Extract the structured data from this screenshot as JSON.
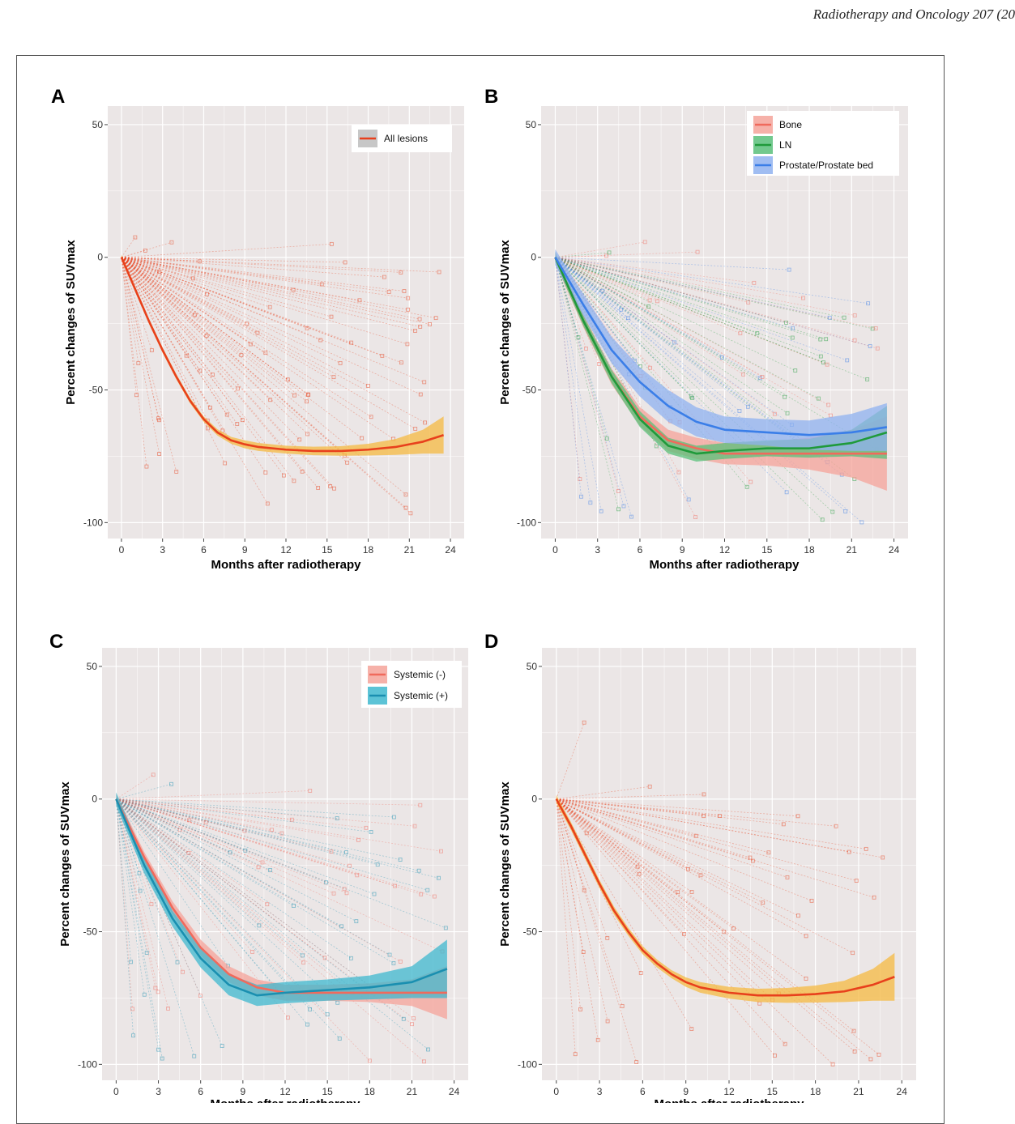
{
  "header": {
    "journal": "Radiotherapy and Oncology 207 (20"
  },
  "chart_data": [
    {
      "panel": "A",
      "type": "line",
      "xlabel": "Months after radiotherapy",
      "ylabel": "Percent changes of SUVmax",
      "xticks": [
        0,
        3,
        6,
        9,
        12,
        15,
        18,
        21,
        24
      ],
      "yticks": [
        50,
        0,
        -50,
        -100
      ],
      "xlim": [
        -1,
        25
      ],
      "ylim": [
        -106,
        57
      ],
      "grid": true,
      "legend_position": "top-right",
      "series": [
        {
          "name": "All lesions",
          "color": "#e8401c",
          "band": "#f5b942",
          "x": [
            0,
            1,
            2,
            3,
            4,
            5,
            6,
            7,
            8,
            9,
            10,
            12,
            14,
            16,
            18,
            20,
            22,
            23.5
          ],
          "y": [
            0,
            -12,
            -24,
            -35,
            -45,
            -54,
            -61,
            -66,
            -69,
            -70.5,
            -71.5,
            -72.5,
            -73,
            -73,
            -72.5,
            -71.5,
            -69.5,
            -67
          ],
          "band_halfwidth": [
            1,
            1,
            1,
            1,
            1,
            1,
            1,
            1.2,
            1.3,
            1.5,
            1.5,
            1.5,
            1.6,
            1.8,
            2.2,
            3,
            4.5,
            7
          ]
        }
      ]
    },
    {
      "panel": "B",
      "type": "line",
      "xlabel": "Months after radiotherapy",
      "ylabel": "Percent changes of SUVmax",
      "xticks": [
        0,
        3,
        6,
        9,
        12,
        15,
        18,
        21,
        24
      ],
      "yticks": [
        50,
        0,
        -50,
        -100
      ],
      "xlim": [
        -1,
        25
      ],
      "ylim": [
        -106,
        57
      ],
      "grid": true,
      "legend_position": "top-right",
      "series": [
        {
          "name": "Bone",
          "color": "#f06a5c",
          "band": "#f5a39a",
          "x": [
            0,
            2,
            4,
            6,
            8,
            10,
            12,
            15,
            18,
            21,
            23.5
          ],
          "y": [
            0,
            -24,
            -45,
            -60,
            -69,
            -72,
            -74,
            -74,
            -74,
            -74,
            -74
          ],
          "band_halfwidth": [
            2,
            2.5,
            3,
            3.5,
            4,
            4,
            4,
            4.5,
            6,
            9,
            14
          ]
        },
        {
          "name": "LN",
          "color": "#1f9a3a",
          "band": "#59c07a",
          "x": [
            0,
            2,
            4,
            6,
            8,
            10,
            12,
            15,
            18,
            21,
            23.5
          ],
          "y": [
            0,
            -24,
            -45,
            -61,
            -71,
            -74,
            -73,
            -72,
            -72,
            -70,
            -66
          ],
          "band_halfwidth": [
            2,
            2,
            2.5,
            3,
            3,
            3,
            3,
            3,
            3.5,
            5,
            10
          ]
        },
        {
          "name": "Prostate/Prostate bed",
          "color": "#3a7ee8",
          "band": "#8fb1f0",
          "x": [
            0,
            2,
            4,
            6,
            8,
            10,
            12,
            15,
            18,
            21,
            23.5
          ],
          "y": [
            0,
            -18,
            -35,
            -47,
            -56,
            -62,
            -65,
            -66,
            -67,
            -66,
            -64
          ],
          "band_halfwidth": [
            3,
            4,
            5,
            5.5,
            6,
            5.5,
            5,
            5,
            5.5,
            7,
            9
          ]
        }
      ]
    },
    {
      "panel": "C",
      "type": "line",
      "xlabel": "Months after radiotherapy",
      "ylabel": "Percent changes of SUVmax",
      "xticks": [
        0,
        3,
        6,
        9,
        12,
        15,
        18,
        21,
        24
      ],
      "yticks": [
        50,
        0,
        -50,
        -100
      ],
      "xlim": [
        -1,
        25
      ],
      "ylim": [
        -106,
        57
      ],
      "grid": true,
      "legend_position": "top-right",
      "series": [
        {
          "name": "Systemic (-)",
          "color": "#f06a5c",
          "band": "#f5a39a",
          "x": [
            0,
            2,
            4,
            6,
            8,
            10,
            12,
            15,
            18,
            21,
            23.5
          ],
          "y": [
            0,
            -22,
            -41,
            -56,
            -66,
            -71,
            -73,
            -73,
            -73,
            -73,
            -73
          ],
          "band_halfwidth": [
            2,
            2,
            2.5,
            3,
            3,
            3,
            3,
            3,
            3.5,
            5,
            10
          ]
        },
        {
          "name": "Systemic (+)",
          "color": "#1a8fb0",
          "band": "#3fb8cf",
          "x": [
            0,
            2,
            4,
            6,
            8,
            10,
            12,
            15,
            18,
            21,
            23.5
          ],
          "y": [
            0,
            -25,
            -45,
            -60,
            -70,
            -74,
            -73,
            -72,
            -71,
            -69,
            -64
          ],
          "band_halfwidth": [
            2.5,
            3,
            3,
            3.5,
            4,
            4,
            4,
            4,
            4.5,
            6,
            11
          ]
        }
      ]
    },
    {
      "panel": "D",
      "type": "line",
      "xlabel": "Months after radiotherapy",
      "ylabel": "Percent changes of SUVmax",
      "xticks": [
        0,
        3,
        6,
        9,
        12,
        15,
        18,
        21,
        24
      ],
      "yticks": [
        50,
        0,
        -50,
        -100
      ],
      "xlim": [
        -1,
        25
      ],
      "ylim": [
        -106,
        57
      ],
      "grid": true,
      "legend_position": "none",
      "series": [
        {
          "name": "",
          "color": "#e8401c",
          "band": "#f5b942",
          "x": [
            0,
            1,
            2,
            3,
            4,
            5,
            6,
            7,
            8,
            9,
            10,
            12,
            14,
            16,
            18,
            20,
            22,
            23.5
          ],
          "y": [
            0,
            -10,
            -21,
            -32,
            -42,
            -50,
            -57,
            -62,
            -66,
            -69,
            -71,
            -73,
            -74,
            -74,
            -73.5,
            -72.5,
            -70,
            -67
          ],
          "band_halfwidth": [
            1.5,
            1.5,
            1.5,
            1.5,
            1.5,
            1.5,
            1.5,
            1.5,
            1.5,
            1.8,
            2,
            2.2,
            2.5,
            2.8,
            3.2,
            4,
            6,
            9
          ]
        }
      ]
    }
  ]
}
